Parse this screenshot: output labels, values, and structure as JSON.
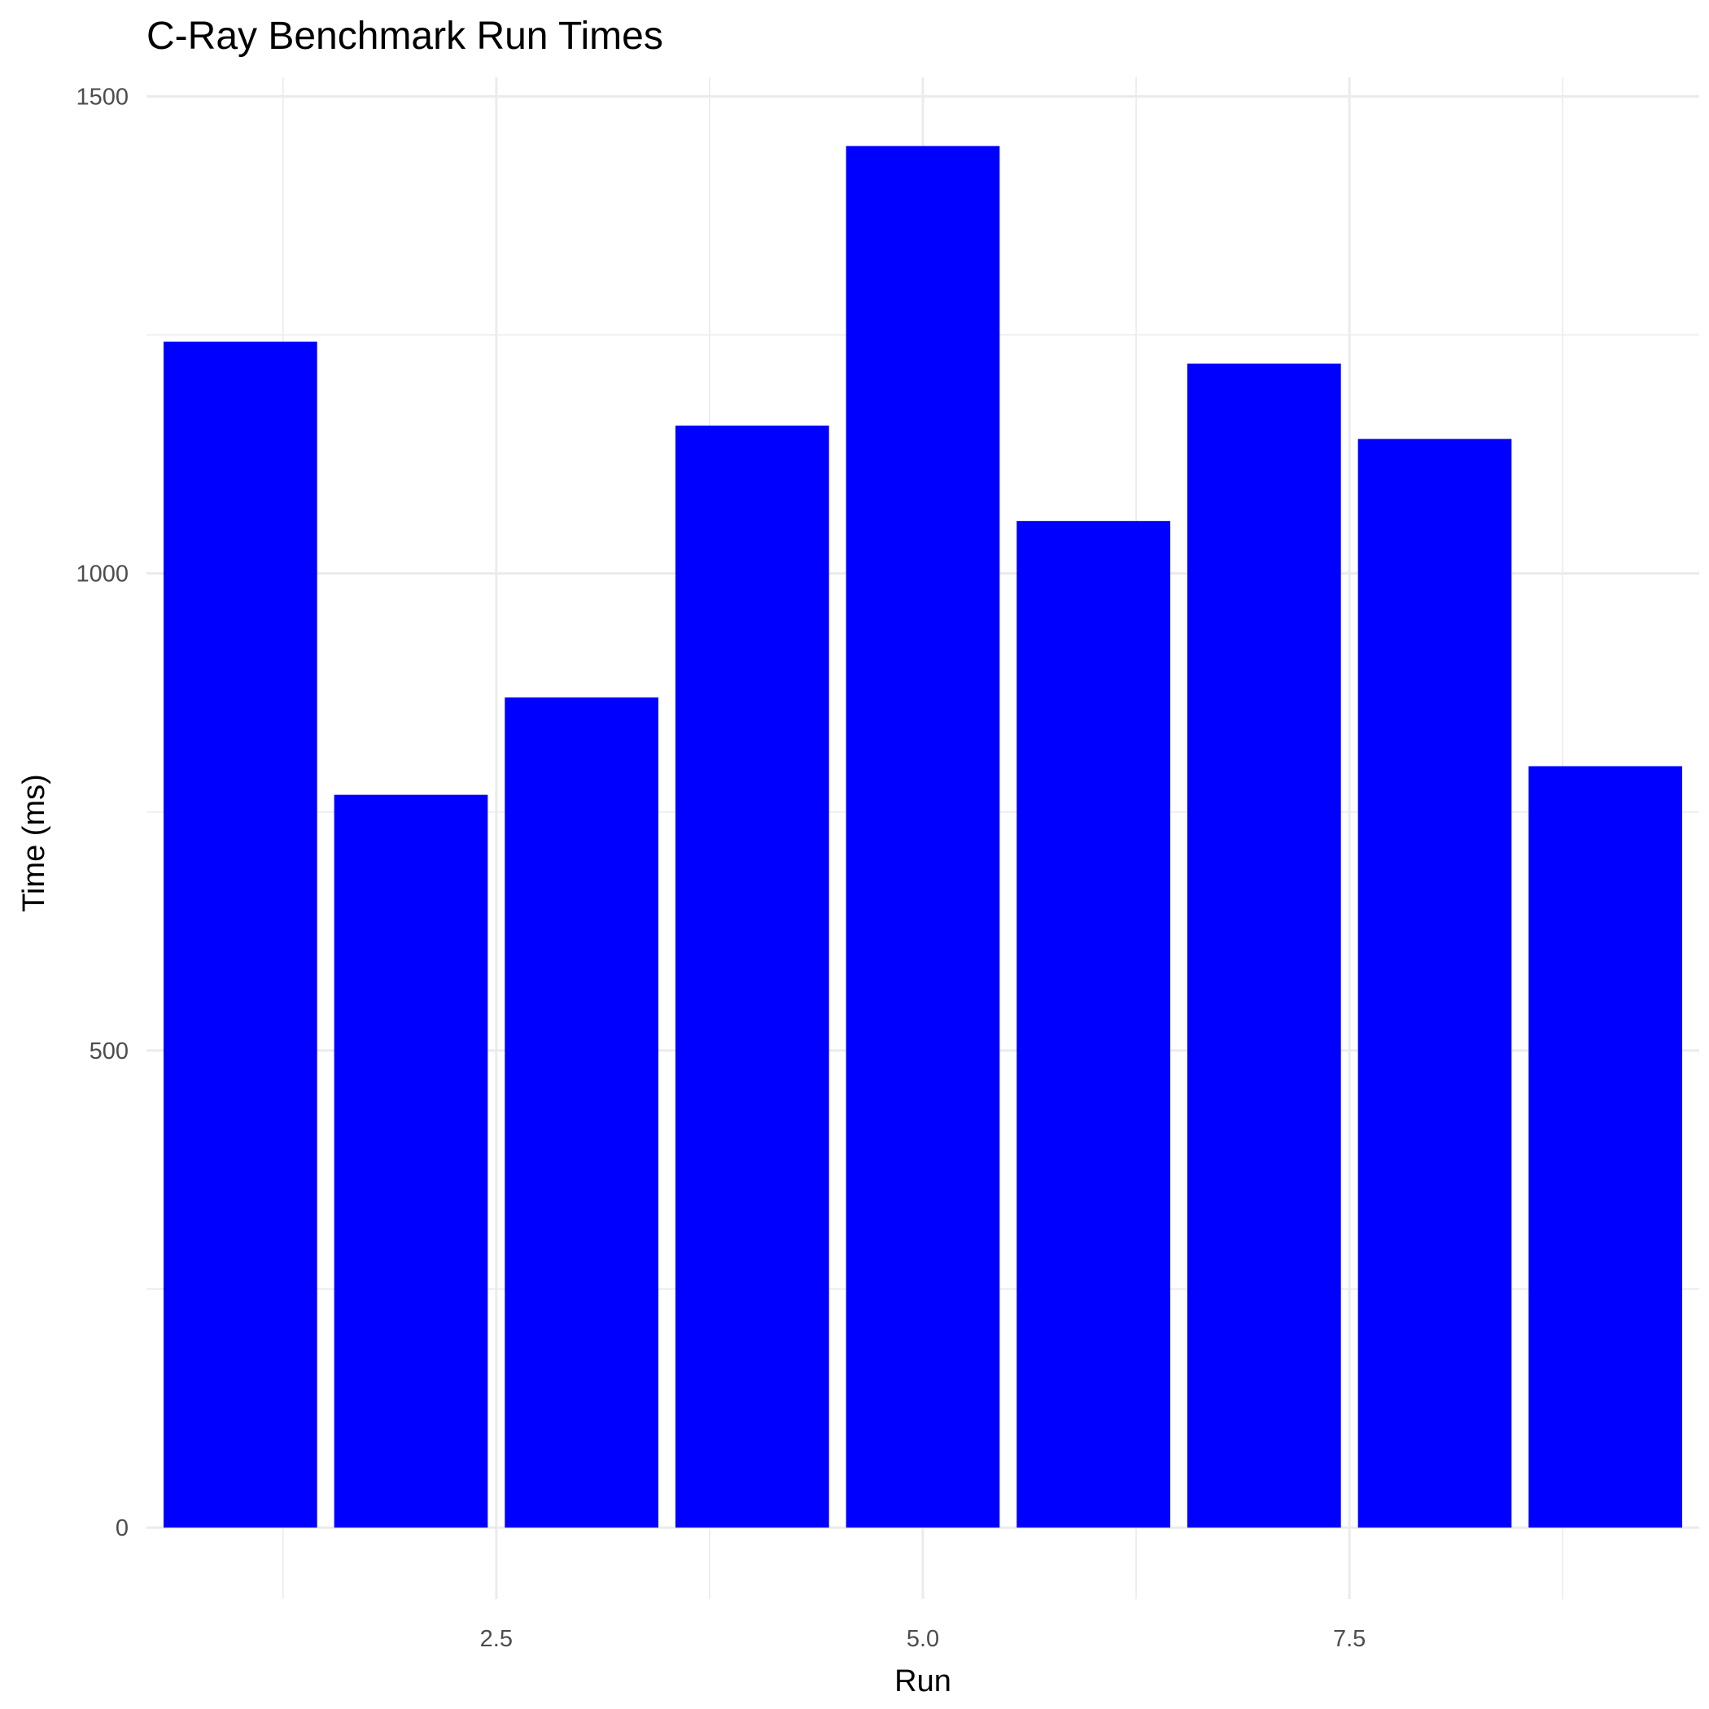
{
  "chart_data": {
    "type": "bar",
    "title": "C-Ray Benchmark Run Times",
    "xlabel": "Run",
    "ylabel": "Time (ms)",
    "x": [
      1,
      2,
      3,
      4,
      5,
      6,
      7,
      8,
      9
    ],
    "values": [
      1243,
      768,
      870,
      1155,
      1448,
      1055,
      1220,
      1141,
      798
    ],
    "xlim": [
      0.45,
      9.55
    ],
    "ylim": [
      -75,
      1520
    ],
    "x_ticks": [
      2.5,
      5.0,
      7.5
    ],
    "x_tick_labels": [
      "2.5",
      "5.0",
      "7.5"
    ],
    "x_minor_ticks": [
      1.25,
      3.75,
      6.25,
      8.75
    ],
    "y_ticks": [
      0,
      500,
      1000,
      1500
    ],
    "y_tick_labels": [
      "0",
      "500",
      "1000",
      "1500"
    ],
    "y_minor_ticks": [
      250,
      750,
      1250
    ],
    "bar_width": 0.9,
    "bar_color": "#0000ff",
    "grid": true,
    "legend": "none"
  }
}
